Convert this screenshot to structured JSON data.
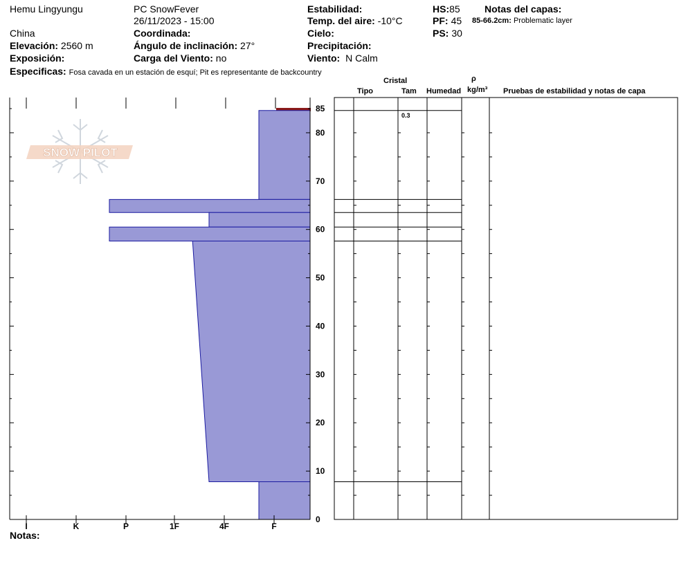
{
  "header": {
    "location": "Hemu Lingyungu",
    "country": "China",
    "observer": "PC SnowFever",
    "datetime": "26/11/2023 - 15:00",
    "elevation_label": "Elevación:",
    "elevation_value": "2560 m",
    "aspect_label": "Exposición:",
    "aspect_value": "",
    "coord_label": "Coordinada:",
    "coord_value": "",
    "slope_label": "Ángulo de inclinación:",
    "slope_value": "27°",
    "wind_load_label": "Carga del Viento:",
    "wind_load_value": "no",
    "stability_label": "Estabilidad:",
    "stability_value": "",
    "air_temp_label": "Temp. del aire:",
    "air_temp_value": "-10°C",
    "sky_label": "Cielo:",
    "sky_value": "",
    "precip_label": "Precipitación:",
    "precip_value": "",
    "wind_label": "Viento:",
    "wind_value": "N Calm",
    "hs_label": "HS:",
    "hs_value": "85",
    "pf_label": "PF:",
    "pf_value": "45",
    "ps_label": "PS:",
    "ps_value": "30",
    "layer_notes_label": "Notas del capas:",
    "layer_note_range": "85-66.2cm:",
    "layer_note_text": "Problematic layer",
    "specifics_label": "Especificas:",
    "specifics_value": "Fosa cavada en un estación de esquí; Pit es representante de backcountry",
    "notes_label": "Notas:"
  },
  "logo": {
    "text": "SNOW PILOT"
  },
  "table_headers": {
    "crystal": "Cristal",
    "type": "Tipo",
    "size": "Tam",
    "moisture": "Humedad",
    "rho": "ρ",
    "density_unit": "kg/m³",
    "tests": "Pruebas de estabilidad y notas de capa"
  },
  "layer_rows": [
    {
      "top": 85,
      "bottom": 84.6,
      "size": "0.3"
    }
  ],
  "chart_data": {
    "type": "area",
    "xlabel": "",
    "ylabel": "",
    "hardness_scale": [
      "I",
      "K",
      "P",
      "1F",
      "4F",
      "F"
    ],
    "x_tick_labels": [
      "I",
      "K",
      "P",
      "1F",
      "4F",
      "F"
    ],
    "y_tick_labels": [
      85,
      80,
      70,
      60,
      50,
      40,
      30,
      20,
      10,
      0
    ],
    "ylim": [
      0,
      85
    ],
    "hardness_axis_units": "0 = I (left edge), 5 = F (tick F), 6 = right edge",
    "layers": [
      {
        "top": 85,
        "bottom": 84.6,
        "hardness_top": 5.2,
        "hardness_bottom": 5.2,
        "color": "#8b1a1a"
      },
      {
        "top": 84.6,
        "bottom": 66.2,
        "hardness_top": 5.0,
        "hardness_bottom": 5.0,
        "color": "#9999d6"
      },
      {
        "top": 66.2,
        "bottom": 63.5,
        "hardness_top": 2.0,
        "hardness_bottom": 2.0,
        "color": "#9999d6"
      },
      {
        "top": 63.5,
        "bottom": 60.5,
        "hardness_top": 4.0,
        "hardness_bottom": 4.0,
        "color": "#9999d6"
      },
      {
        "top": 60.5,
        "bottom": 57.6,
        "hardness_top": 2.0,
        "hardness_bottom": 2.0,
        "color": "#9999d6"
      },
      {
        "top": 57.6,
        "bottom": 7.8,
        "hardness_top": 3.67,
        "hardness_bottom": 4.0,
        "color": "#9999d6"
      },
      {
        "top": 7.8,
        "bottom": 0,
        "hardness_top": 5.0,
        "hardness_bottom": 5.0,
        "color": "#9999d6"
      }
    ],
    "grid": false,
    "legend": "none"
  },
  "colors": {
    "layer_fill": "#9999d6",
    "layer_stroke": "#1a1aa0",
    "surface_layer": "#8b1a1a"
  }
}
